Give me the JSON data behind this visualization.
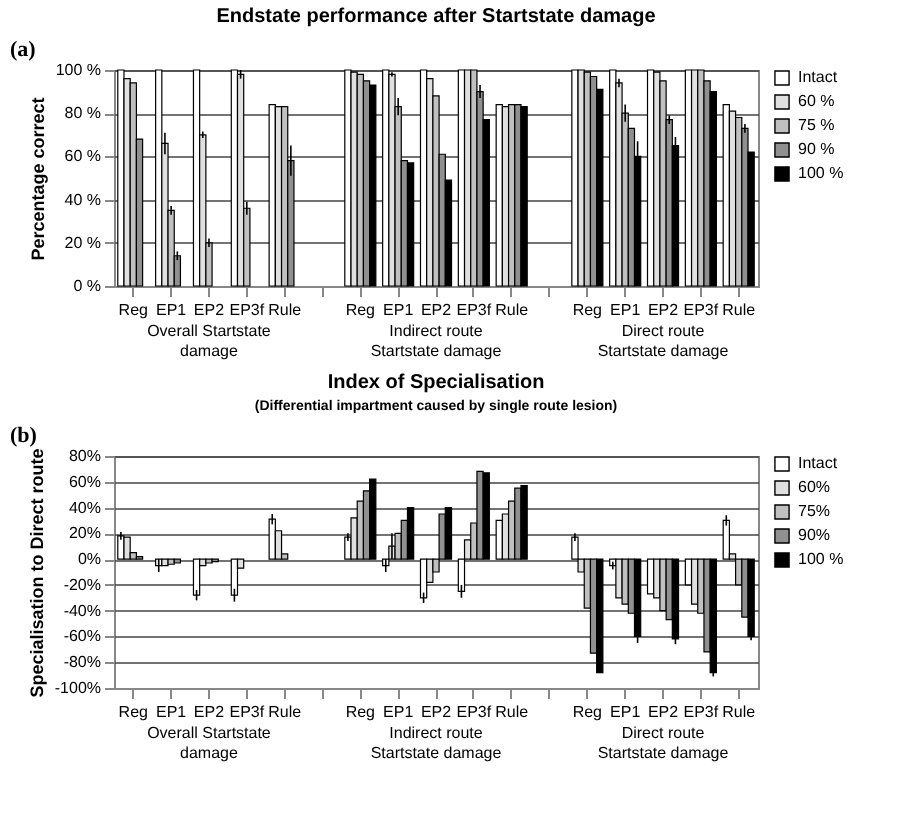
{
  "chart_data": [
    {
      "type": "bar",
      "title": "Endstate performance after Startstate damage",
      "ylabel": "Percentage correct",
      "annotations": [
        "(a)",
        "Overall Startstate damage",
        "Indirect route Startstate damage",
        "Direct route Startstate damage"
      ],
      "categories": [
        "Reg",
        "EP1",
        "EP2",
        "EP3f",
        "Rule",
        null,
        "Reg",
        "EP1",
        "EP2",
        "EP3f",
        "Rule",
        null,
        "Reg",
        "EP1",
        "EP2",
        "EP3f",
        "Rule"
      ],
      "series": [
        {
          "name": "Intact",
          "color": "#ffffff",
          "values": [
            100,
            100,
            100,
            100,
            84,
            null,
            100,
            100,
            100,
            100,
            84,
            null,
            100,
            100,
            100,
            100,
            84
          ]
        },
        {
          "name": "60 %",
          "color": "#e0e0e0",
          "values": [
            96,
            66,
            70,
            98,
            83,
            null,
            99,
            98,
            96,
            100,
            83,
            null,
            100,
            94,
            99,
            100,
            81
          ],
          "errors": [
            null,
            5,
            1.5,
            2,
            null,
            null,
            null,
            1,
            null,
            null,
            null,
            null,
            null,
            2,
            null,
            null,
            null
          ]
        },
        {
          "name": "75 %",
          "color": "#c0c0c0",
          "values": [
            94,
            35,
            20,
            36,
            83,
            null,
            98,
            83,
            88,
            100,
            84,
            null,
            99,
            80,
            95,
            100,
            78
          ],
          "errors": [
            null,
            2,
            2,
            3,
            null,
            null,
            null,
            4,
            null,
            null,
            null,
            null,
            null,
            4,
            null,
            null,
            null
          ]
        },
        {
          "name": "90 %",
          "color": "#909090",
          "values": [
            68,
            14,
            null,
            null,
            58,
            null,
            95,
            58,
            61,
            90,
            84,
            null,
            97,
            73,
            77,
            95,
            73
          ],
          "errors": [
            null,
            2,
            null,
            null,
            7,
            null,
            null,
            null,
            null,
            3,
            null,
            null,
            null,
            null,
            2,
            null,
            2
          ]
        },
        {
          "name": "100 %",
          "color": "#000000",
          "values": [
            null,
            null,
            null,
            null,
            null,
            null,
            93,
            57,
            49,
            77,
            83,
            null,
            91,
            60,
            65,
            90,
            62
          ],
          "errors": [
            null,
            null,
            null,
            null,
            null,
            null,
            null,
            null,
            null,
            null,
            null,
            null,
            null,
            7,
            4,
            null,
            null
          ]
        }
      ],
      "ylim": [
        0,
        100
      ],
      "yticks": [
        {
          "value": 0,
          "label": "0 %"
        },
        {
          "value": 20,
          "label": "20 %"
        },
        {
          "value": 40,
          "label": "40 %"
        },
        {
          "value": 60,
          "label": "60 %"
        },
        {
          "value": 80,
          "label": "80 %"
        },
        {
          "value": 100,
          "label": "100 %"
        }
      ],
      "grid": "y",
      "legend": "right"
    },
    {
      "type": "bar",
      "title": "Index of Specialisation",
      "subtitle": "(Differential impartment caused by single route lesion)",
      "ylabel": "Specialisation to Direct route",
      "annotations": [
        "(b)",
        "Overall Startstate damage",
        "Indirect route Startstate damage",
        "Direct route Startstate damage"
      ],
      "categories": [
        "Reg",
        "EP1",
        "EP2",
        "EP3f",
        "Rule",
        null,
        "Reg",
        "EP1",
        "EP2",
        "EP3f",
        "Rule",
        null,
        "Reg",
        "EP1",
        "EP2",
        "EP3f",
        "Rule"
      ],
      "series": [
        {
          "name": "Intact",
          "color": "#ffffff",
          "values": [
            18,
            -5,
            -28,
            -28,
            31,
            null,
            17,
            -5,
            -30,
            -25,
            30,
            null,
            17,
            -5,
            -27,
            -20,
            30
          ],
          "errors": [
            3,
            5,
            4,
            5,
            4,
            null,
            3,
            5,
            4,
            5,
            null,
            null,
            3,
            3,
            null,
            null,
            4
          ]
        },
        {
          "name": "60%",
          "color": "#e0e0e0",
          "values": [
            17,
            -5,
            -5,
            -7,
            22,
            null,
            32,
            10,
            -18,
            15,
            35,
            null,
            -10,
            -30,
            -30,
            -35,
            4
          ],
          "errors": [
            null,
            null,
            null,
            null,
            null,
            null,
            null,
            10,
            null,
            null,
            null,
            null,
            null,
            null,
            null,
            null,
            null
          ]
        },
        {
          "name": "75%",
          "color": "#c0c0c0",
          "values": [
            5,
            -4,
            -3,
            null,
            4,
            null,
            45,
            20,
            -10,
            28,
            45,
            null,
            -38,
            -35,
            -40,
            -42,
            -20
          ]
        },
        {
          "name": "90%",
          "color": "#909090",
          "values": [
            2,
            -3,
            -2,
            null,
            null,
            null,
            53,
            30,
            35,
            68,
            55,
            null,
            -73,
            -42,
            -47,
            -72,
            -45
          ]
        },
        {
          "name": "100 %",
          "color": "#000000",
          "values": [
            null,
            null,
            null,
            null,
            null,
            null,
            62,
            40,
            40,
            67,
            57,
            null,
            -88,
            -60,
            -62,
            -88,
            -60
          ],
          "errors": [
            null,
            null,
            null,
            null,
            null,
            null,
            null,
            null,
            null,
            null,
            null,
            null,
            null,
            5,
            4,
            3,
            3
          ]
        }
      ],
      "ylim": [
        -100,
        80
      ],
      "yticks": [
        {
          "value": -100,
          "label": "-100%"
        },
        {
          "value": -80,
          "label": "-80%"
        },
        {
          "value": -60,
          "label": "-60%"
        },
        {
          "value": -40,
          "label": "-40%"
        },
        {
          "value": -20,
          "label": "-20%"
        },
        {
          "value": 0,
          "label": "0%"
        },
        {
          "value": 20,
          "label": "20%"
        },
        {
          "value": 40,
          "label": "40%"
        },
        {
          "value": 60,
          "label": "60%"
        },
        {
          "value": 80,
          "label": "80%"
        }
      ],
      "grid": "y",
      "legend": "right"
    }
  ]
}
